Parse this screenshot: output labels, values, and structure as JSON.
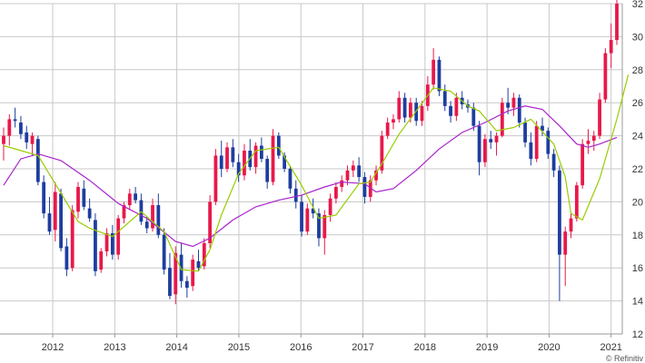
{
  "chart_data": {
    "type": "candlestick",
    "title": "",
    "xlabel": "",
    "ylabel": "",
    "ylim": [
      12,
      32
    ],
    "yticks": [
      12,
      14,
      16,
      18,
      20,
      22,
      24,
      26,
      28,
      30,
      32
    ],
    "xticks": [
      "2012",
      "2013",
      "2014",
      "2015",
      "2016",
      "2017",
      "2018",
      "2019",
      "2020",
      "2021"
    ],
    "x_start": 2011.15,
    "x_end": 2021.18,
    "grid": true,
    "y_axis_position": "right",
    "colors": {
      "up": "#e8184a",
      "down": "#1d3d9f",
      "ma_short": "#99cc00",
      "ma_long": "#aa22cc",
      "grid": "#c8c8c8"
    },
    "candles": [
      [
        23.5,
        24.5,
        22.5,
        24.0
      ],
      [
        24.0,
        25.3,
        23.4,
        25.0
      ],
      [
        25.0,
        25.7,
        24.5,
        24.9
      ],
      [
        24.8,
        25.2,
        23.8,
        24.1
      ],
      [
        24.2,
        24.6,
        23.2,
        23.6
      ],
      [
        23.5,
        24.2,
        22.8,
        24.0
      ],
      [
        23.8,
        24.0,
        21.0,
        21.2
      ],
      [
        21.2,
        21.6,
        19.0,
        19.3
      ],
      [
        19.3,
        20.3,
        18.0,
        18.2
      ],
      [
        18.3,
        21.2,
        17.6,
        20.6
      ],
      [
        20.5,
        20.8,
        17.0,
        17.2
      ],
      [
        17.3,
        17.8,
        15.5,
        15.9
      ],
      [
        16.0,
        19.8,
        15.8,
        19.5
      ],
      [
        19.4,
        21.2,
        19.0,
        20.9
      ],
      [
        20.8,
        21.3,
        19.5,
        19.7
      ],
      [
        19.6,
        20.2,
        18.8,
        19.0
      ],
      [
        18.9,
        19.3,
        15.5,
        15.8
      ],
      [
        15.9,
        17.2,
        15.7,
        17.0
      ],
      [
        17.0,
        18.4,
        16.7,
        18.1
      ],
      [
        18.1,
        18.6,
        16.5,
        16.8
      ],
      [
        16.8,
        19.2,
        16.5,
        19.0
      ],
      [
        19.0,
        20.0,
        18.7,
        19.8
      ],
      [
        19.8,
        20.8,
        19.5,
        20.5
      ],
      [
        20.5,
        20.9,
        19.9,
        20.1
      ],
      [
        20.1,
        20.5,
        18.6,
        18.8
      ],
      [
        18.8,
        19.1,
        18.1,
        18.4
      ],
      [
        18.4,
        20.2,
        18.2,
        19.8
      ],
      [
        19.8,
        20.5,
        17.8,
        18.0
      ],
      [
        18.0,
        18.4,
        15.6,
        15.9
      ],
      [
        16.0,
        16.9,
        14.1,
        14.3
      ],
      [
        14.4,
        17.3,
        13.8,
        16.9
      ],
      [
        16.8,
        17.5,
        14.8,
        15.2
      ],
      [
        15.2,
        15.5,
        14.2,
        14.8
      ],
      [
        14.9,
        16.8,
        14.6,
        16.5
      ],
      [
        16.4,
        17.1,
        15.8,
        16.0
      ],
      [
        16.1,
        17.8,
        15.9,
        17.5
      ],
      [
        17.5,
        20.4,
        17.2,
        20.0
      ],
      [
        20.0,
        23.2,
        19.8,
        22.8
      ],
      [
        22.8,
        23.7,
        21.5,
        22.0
      ],
      [
        22.0,
        23.6,
        21.8,
        23.3
      ],
      [
        23.3,
        23.8,
        22.1,
        22.4
      ],
      [
        22.4,
        22.9,
        21.2,
        21.6
      ],
      [
        21.6,
        23.5,
        21.3,
        23.1
      ],
      [
        23.1,
        23.8,
        21.9,
        22.1
      ],
      [
        22.1,
        23.6,
        21.7,
        23.4
      ],
      [
        23.4,
        23.9,
        22.4,
        22.6
      ],
      [
        22.6,
        22.8,
        20.8,
        21.2
      ],
      [
        21.2,
        24.4,
        21.0,
        24.0
      ],
      [
        24.0,
        24.2,
        22.6,
        22.8
      ],
      [
        22.8,
        23.0,
        21.8,
        22.0
      ],
      [
        22.0,
        22.2,
        20.5,
        20.8
      ],
      [
        20.8,
        21.3,
        19.6,
        20.0
      ],
      [
        20.0,
        20.4,
        17.9,
        18.2
      ],
      [
        18.2,
        19.9,
        18.0,
        19.6
      ],
      [
        19.6,
        20.2,
        19.0,
        19.3
      ],
      [
        19.3,
        19.6,
        17.3,
        17.8
      ],
      [
        17.8,
        19.5,
        16.8,
        19.2
      ],
      [
        19.2,
        20.5,
        18.8,
        20.2
      ],
      [
        20.2,
        21.2,
        19.9,
        20.9
      ],
      [
        20.9,
        21.6,
        20.6,
        21.3
      ],
      [
        21.3,
        22.2,
        21.0,
        21.9
      ],
      [
        21.9,
        22.5,
        21.5,
        22.2
      ],
      [
        22.2,
        22.7,
        21.2,
        21.5
      ],
      [
        21.5,
        21.8,
        19.9,
        20.3
      ],
      [
        20.3,
        21.6,
        20.0,
        21.3
      ],
      [
        21.3,
        22.2,
        21.0,
        21.9
      ],
      [
        21.9,
        24.3,
        21.7,
        24.0
      ],
      [
        24.0,
        25.1,
        23.8,
        24.8
      ],
      [
        24.8,
        25.3,
        24.4,
        25.0
      ],
      [
        25.0,
        26.7,
        24.8,
        26.3
      ],
      [
        26.3,
        26.6,
        24.8,
        25.1
      ],
      [
        25.1,
        26.3,
        24.8,
        26.0
      ],
      [
        26.0,
        26.3,
        24.6,
        24.9
      ],
      [
        24.9,
        26.1,
        24.6,
        25.8
      ],
      [
        25.8,
        27.6,
        25.5,
        27.1
      ],
      [
        27.1,
        29.3,
        26.8,
        28.6
      ],
      [
        28.6,
        28.8,
        26.4,
        26.7
      ],
      [
        26.7,
        27.1,
        25.5,
        25.8
      ],
      [
        25.8,
        26.1,
        24.8,
        25.2
      ],
      [
        25.2,
        26.6,
        24.9,
        26.3
      ],
      [
        26.3,
        26.7,
        25.6,
        25.9
      ],
      [
        25.9,
        26.2,
        25.4,
        25.7
      ],
      [
        25.7,
        26.0,
        24.3,
        24.6
      ],
      [
        24.6,
        24.9,
        21.6,
        22.4
      ],
      [
        22.4,
        24.1,
        22.1,
        23.8
      ],
      [
        23.8,
        24.3,
        23.2,
        23.6
      ],
      [
        23.6,
        24.2,
        22.8,
        24.0
      ],
      [
        24.0,
        26.3,
        23.9,
        26.0
      ],
      [
        26.0,
        26.9,
        25.3,
        25.7
      ],
      [
        25.7,
        26.6,
        25.2,
        26.3
      ],
      [
        26.3,
        26.5,
        24.5,
        24.8
      ],
      [
        24.8,
        25.1,
        23.3,
        23.6
      ],
      [
        23.6,
        24.2,
        22.2,
        22.6
      ],
      [
        22.6,
        24.9,
        22.4,
        24.6
      ],
      [
        24.6,
        25.1,
        24.0,
        24.3
      ],
      [
        24.3,
        24.5,
        22.6,
        22.9
      ],
      [
        22.9,
        23.2,
        21.5,
        21.9
      ],
      [
        21.9,
        22.2,
        14.0,
        16.8
      ],
      [
        16.8,
        18.5,
        14.9,
        18.2
      ],
      [
        18.2,
        19.3,
        17.8,
        19.0
      ],
      [
        19.0,
        21.2,
        18.8,
        21.0
      ],
      [
        21.0,
        23.8,
        20.8,
        23.5
      ],
      [
        23.5,
        24.4,
        22.9,
        23.7
      ],
      [
        23.7,
        24.3,
        23.1,
        24.0
      ],
      [
        24.0,
        26.6,
        23.8,
        26.2
      ],
      [
        26.2,
        29.3,
        26.0,
        29.0
      ],
      [
        29.0,
        30.8,
        28.1,
        29.8
      ],
      [
        29.8,
        32.5,
        29.5,
        32.0
      ]
    ],
    "ma_short": [
      [
        0,
        23.4
      ],
      [
        6,
        22.8
      ],
      [
        9,
        21.1
      ],
      [
        13,
        18.8
      ],
      [
        15,
        18.4
      ],
      [
        19,
        17.9
      ],
      [
        24,
        19.4
      ],
      [
        28,
        18.2
      ],
      [
        31,
        15.9
      ],
      [
        34,
        15.8
      ],
      [
        36,
        17.1
      ],
      [
        38,
        19.2
      ],
      [
        41,
        21.7
      ],
      [
        44,
        23.1
      ],
      [
        48,
        23.3
      ],
      [
        52,
        21.0
      ],
      [
        55,
        19.0
      ],
      [
        58,
        19.2
      ],
      [
        62,
        21.1
      ],
      [
        64,
        21.2
      ],
      [
        66,
        22.3
      ],
      [
        69,
        24.1
      ],
      [
        72,
        25.5
      ],
      [
        75,
        26.9
      ],
      [
        78,
        26.7
      ],
      [
        81,
        25.8
      ],
      [
        83,
        25.5
      ],
      [
        86,
        24.3
      ],
      [
        89,
        24.5
      ],
      [
        92,
        25.0
      ],
      [
        96,
        23.5
      ],
      [
        98,
        21.5
      ],
      [
        99,
        19.3
      ],
      [
        101,
        18.9
      ],
      [
        104,
        21.4
      ],
      [
        107,
        25.0
      ],
      [
        109,
        27.7
      ]
    ],
    "ma_long": [
      [
        0,
        21.0
      ],
      [
        3,
        22.6
      ],
      [
        6,
        22.9
      ],
      [
        10,
        22.5
      ],
      [
        15,
        21.3
      ],
      [
        20,
        19.9
      ],
      [
        25,
        19.0
      ],
      [
        30,
        17.6
      ],
      [
        33,
        17.3
      ],
      [
        36,
        17.8
      ],
      [
        40,
        18.9
      ],
      [
        44,
        19.7
      ],
      [
        48,
        20.1
      ],
      [
        52,
        20.4
      ],
      [
        56,
        20.9
      ],
      [
        59,
        21.2
      ],
      [
        63,
        21.1
      ],
      [
        65,
        20.6
      ],
      [
        68,
        20.8
      ],
      [
        72,
        21.9
      ],
      [
        76,
        23.2
      ],
      [
        80,
        24.2
      ],
      [
        84,
        24.8
      ],
      [
        88,
        25.5
      ],
      [
        91,
        25.8
      ],
      [
        94,
        25.6
      ],
      [
        97,
        24.6
      ],
      [
        100,
        23.5
      ],
      [
        102,
        23.3
      ],
      [
        104,
        23.5
      ],
      [
        107,
        23.9
      ]
    ],
    "credit": "© Refinitiv"
  }
}
